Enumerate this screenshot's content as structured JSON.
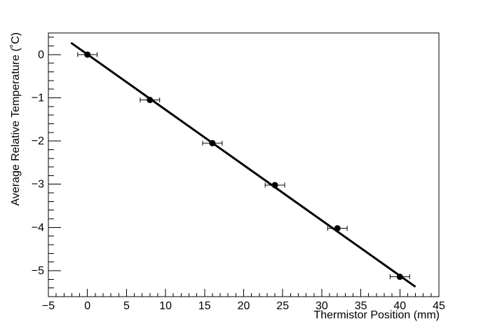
{
  "figure": {
    "background_color": "#ffffff",
    "frame_color": "#000000",
    "text_color": "#000000"
  },
  "chart_data": {
    "type": "scatter",
    "title": "",
    "xlabel": "Thermistor Position (mm)",
    "ylabel": "Average Relative Temperature (˚C)",
    "xlim": [
      -5,
      45
    ],
    "ylim": [
      -5.6,
      0.5
    ],
    "grid": false,
    "legend": false,
    "axes": {
      "x_major_step": 5,
      "x_minor_step": 1,
      "y_major_step": 1,
      "y_minor_step": 0.2,
      "x_tick_values": [
        -5,
        0,
        5,
        10,
        15,
        20,
        25,
        30,
        35,
        40,
        45
      ],
      "x_tick_labels": [
        "−5",
        "0",
        "5",
        "10",
        "15",
        "20",
        "25",
        "30",
        "35",
        "40",
        "45"
      ],
      "y_tick_values": [
        0,
        -1,
        -2,
        -3,
        -4,
        -5
      ],
      "y_tick_labels": [
        "0",
        "−1",
        "−2",
        "−3",
        "−4",
        "−5"
      ]
    },
    "series": [
      {
        "name": "measured-points",
        "kind": "scatter",
        "marker": "filled-circle",
        "color": "#000000",
        "x": [
          0,
          8,
          16,
          24,
          32,
          40
        ],
        "y": [
          0.0,
          -1.05,
          -2.05,
          -3.02,
          -4.02,
          -5.14
        ],
        "xerr": [
          1.25,
          1.25,
          1.25,
          1.25,
          1.25,
          1.25
        ]
      },
      {
        "name": "linear-fit-line",
        "kind": "line",
        "color": "#000000",
        "x": [
          -2.0,
          41.9
        ],
        "y": [
          0.26,
          -5.36
        ]
      }
    ]
  }
}
